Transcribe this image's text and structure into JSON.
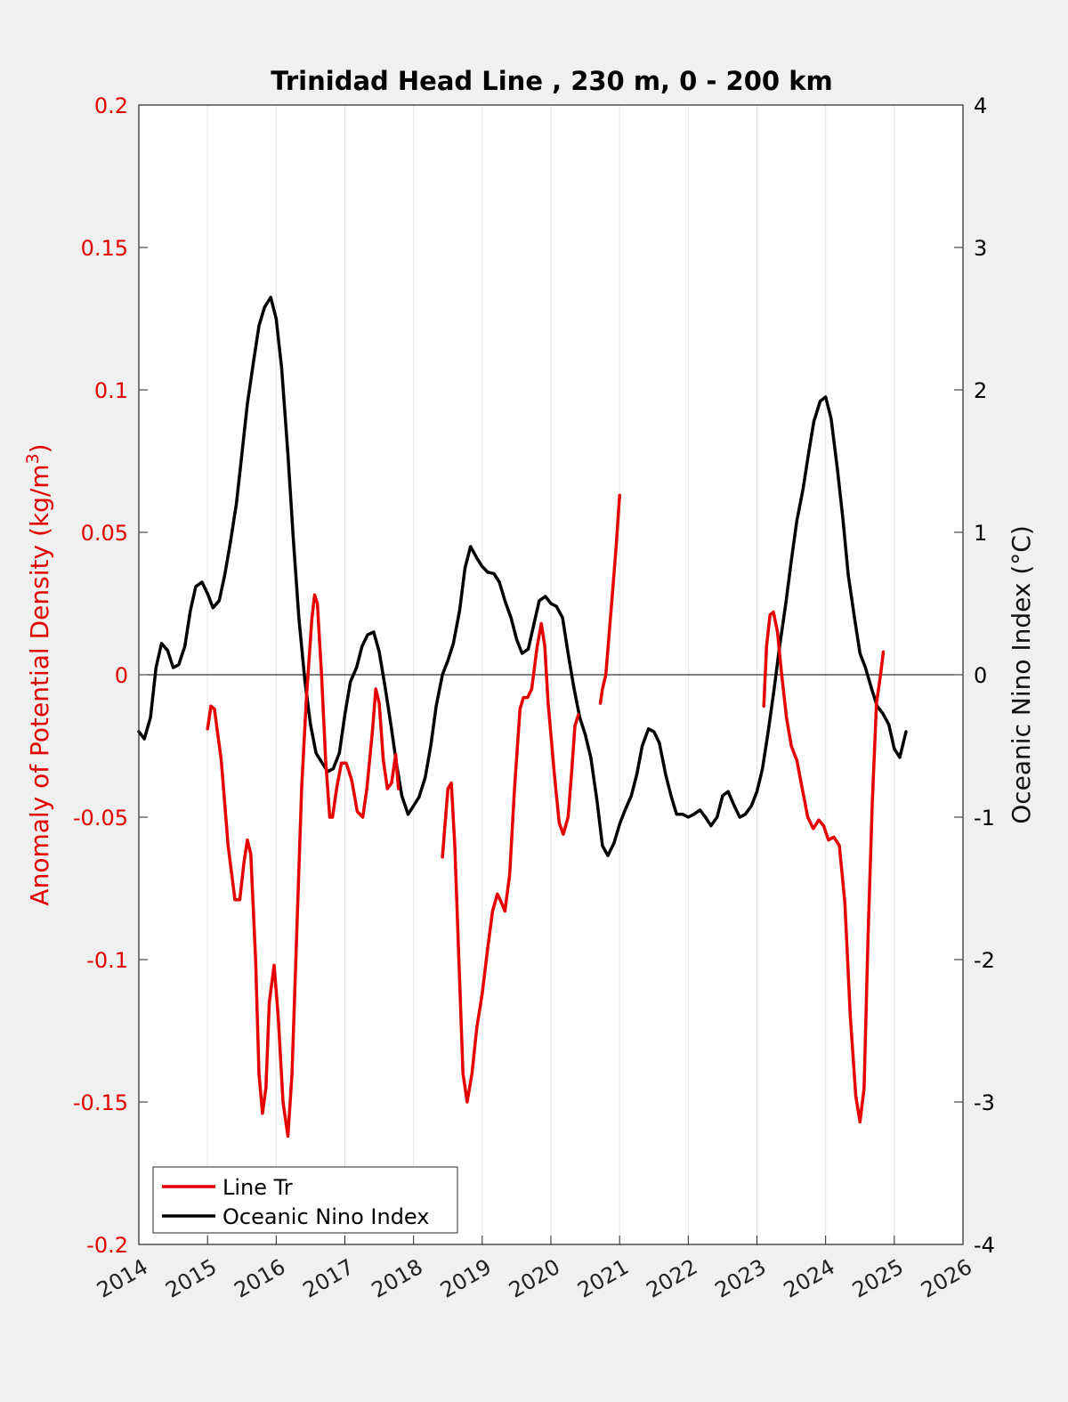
{
  "chart_data": {
    "type": "line",
    "title": "Trinidad Head Line , 230 m, 0 - 200 km",
    "ylabel_left_prefix": "Anomaly of Potential Density (kg/m",
    "ylabel_left_sup": "3",
    "ylabel_left_suffix": ")",
    "ylabel_right": "Oceanic Nino Index (°C)",
    "xlim": [
      2014,
      2026
    ],
    "ylim_left": [
      -0.2,
      0.2
    ],
    "ylim_right": [
      -4,
      4
    ],
    "x_ticks": [
      "2014",
      "2015",
      "2016",
      "2017",
      "2018",
      "2019",
      "2020",
      "2021",
      "2022",
      "2023",
      "2024",
      "2025",
      "2026"
    ],
    "y_left_ticks": [
      "-0.2",
      "-0.15",
      "-0.1",
      "-0.05",
      "0",
      "0.05",
      "0.1",
      "0.15",
      "0.2"
    ],
    "y_right_ticks": [
      "-4",
      "-3",
      "-2",
      "-1",
      "0",
      "1",
      "2",
      "3",
      "4"
    ],
    "grid": "vertical",
    "legend_position": "bottom-left",
    "colors": {
      "line_tr": "#e60000",
      "oni": "#000000"
    },
    "series": [
      {
        "name": "Line Tr",
        "axis": "left",
        "segments": [
          [
            [
              2015.0,
              -0.019
            ],
            [
              2015.05,
              -0.011
            ],
            [
              2015.1,
              -0.012
            ],
            [
              2015.2,
              -0.03
            ],
            [
              2015.3,
              -0.06
            ],
            [
              2015.4,
              -0.079
            ],
            [
              2015.47,
              -0.079
            ],
            [
              2015.53,
              -0.066
            ],
            [
              2015.58,
              -0.058
            ],
            [
              2015.63,
              -0.063
            ],
            [
              2015.7,
              -0.1
            ],
            [
              2015.75,
              -0.14
            ],
            [
              2015.8,
              -0.154
            ],
            [
              2015.85,
              -0.145
            ],
            [
              2015.9,
              -0.115
            ],
            [
              2015.97,
              -0.102
            ],
            [
              2016.03,
              -0.12
            ],
            [
              2016.1,
              -0.15
            ],
            [
              2016.17,
              -0.162
            ],
            [
              2016.23,
              -0.14
            ],
            [
              2016.3,
              -0.09
            ],
            [
              2016.37,
              -0.04
            ],
            [
              2016.44,
              -0.008
            ],
            [
              2016.52,
              0.02
            ],
            [
              2016.56,
              0.028
            ],
            [
              2016.6,
              0.025
            ],
            [
              2016.66,
              0.0
            ],
            [
              2016.72,
              -0.03
            ],
            [
              2016.78,
              -0.05
            ],
            [
              2016.82,
              -0.05
            ],
            [
              2016.88,
              -0.04
            ],
            [
              2016.95,
              -0.031
            ],
            [
              2017.02,
              -0.031
            ],
            [
              2017.1,
              -0.037
            ],
            [
              2017.18,
              -0.048
            ],
            [
              2017.26,
              -0.05
            ],
            [
              2017.32,
              -0.04
            ],
            [
              2017.4,
              -0.02
            ],
            [
              2017.45,
              -0.005
            ],
            [
              2017.5,
              -0.01
            ],
            [
              2017.56,
              -0.03
            ],
            [
              2017.62,
              -0.04
            ],
            [
              2017.68,
              -0.038
            ],
            [
              2017.74,
              -0.028
            ],
            [
              2017.78,
              -0.04
            ]
          ],
          [
            [
              2018.42,
              -0.064
            ],
            [
              2018.46,
              -0.052
            ],
            [
              2018.5,
              -0.04
            ],
            [
              2018.55,
              -0.038
            ],
            [
              2018.6,
              -0.06
            ],
            [
              2018.66,
              -0.1
            ],
            [
              2018.72,
              -0.14
            ],
            [
              2018.78,
              -0.15
            ],
            [
              2018.85,
              -0.14
            ],
            [
              2018.92,
              -0.124
            ],
            [
              2019.0,
              -0.112
            ],
            [
              2019.07,
              -0.098
            ],
            [
              2019.15,
              -0.083
            ],
            [
              2019.22,
              -0.077
            ],
            [
              2019.28,
              -0.08
            ],
            [
              2019.33,
              -0.083
            ],
            [
              2019.4,
              -0.07
            ],
            [
              2019.47,
              -0.04
            ],
            [
              2019.55,
              -0.012
            ],
            [
              2019.6,
              -0.008
            ],
            [
              2019.66,
              -0.008
            ],
            [
              2019.72,
              -0.005
            ],
            [
              2019.8,
              0.01
            ],
            [
              2019.86,
              0.018
            ],
            [
              2019.91,
              0.01
            ],
            [
              2019.96,
              -0.01
            ],
            [
              2020.05,
              -0.035
            ],
            [
              2020.12,
              -0.052
            ],
            [
              2020.18,
              -0.056
            ],
            [
              2020.25,
              -0.05
            ],
            [
              2020.3,
              -0.035
            ],
            [
              2020.35,
              -0.018
            ],
            [
              2020.4,
              -0.014
            ]
          ],
          [
            [
              2020.72,
              -0.01
            ],
            [
              2020.75,
              -0.005
            ],
            [
              2020.8,
              0.0
            ],
            [
              2020.85,
              0.015
            ],
            [
              2020.9,
              0.03
            ],
            [
              2020.95,
              0.045
            ],
            [
              2021.0,
              0.063
            ]
          ],
          [
            [
              2023.1,
              -0.011
            ],
            [
              2023.14,
              0.01
            ],
            [
              2023.19,
              0.021
            ],
            [
              2023.24,
              0.022
            ],
            [
              2023.3,
              0.015
            ],
            [
              2023.36,
              0.0
            ],
            [
              2023.43,
              -0.015
            ],
            [
              2023.5,
              -0.025
            ],
            [
              2023.58,
              -0.03
            ],
            [
              2023.66,
              -0.04
            ],
            [
              2023.74,
              -0.05
            ],
            [
              2023.82,
              -0.054
            ],
            [
              2023.9,
              -0.051
            ],
            [
              2023.97,
              -0.053
            ],
            [
              2024.04,
              -0.058
            ],
            [
              2024.12,
              -0.057
            ],
            [
              2024.2,
              -0.06
            ],
            [
              2024.28,
              -0.08
            ],
            [
              2024.36,
              -0.12
            ],
            [
              2024.44,
              -0.148
            ],
            [
              2024.5,
              -0.157
            ],
            [
              2024.56,
              -0.145
            ],
            [
              2024.62,
              -0.09
            ],
            [
              2024.68,
              -0.045
            ],
            [
              2024.74,
              -0.01
            ],
            [
              2024.8,
              0.0
            ],
            [
              2024.84,
              0.008
            ]
          ]
        ]
      },
      {
        "name": "Oceanic Nino Index",
        "axis": "right",
        "segments": [
          [
            [
              2014.0,
              -0.4
            ],
            [
              2014.08,
              -0.45
            ],
            [
              2014.17,
              -0.3
            ],
            [
              2014.25,
              0.05
            ],
            [
              2014.33,
              0.22
            ],
            [
              2014.42,
              0.17
            ],
            [
              2014.5,
              0.05
            ],
            [
              2014.58,
              0.07
            ],
            [
              2014.67,
              0.2
            ],
            [
              2014.75,
              0.45
            ],
            [
              2014.83,
              0.62
            ],
            [
              2014.92,
              0.65
            ],
            [
              2015.0,
              0.57
            ],
            [
              2015.08,
              0.47
            ],
            [
              2015.17,
              0.52
            ],
            [
              2015.25,
              0.7
            ],
            [
              2015.33,
              0.92
            ],
            [
              2015.42,
              1.2
            ],
            [
              2015.5,
              1.55
            ],
            [
              2015.58,
              1.9
            ],
            [
              2015.67,
              2.2
            ],
            [
              2015.75,
              2.45
            ],
            [
              2015.83,
              2.58
            ],
            [
              2015.92,
              2.65
            ],
            [
              2016.0,
              2.5
            ],
            [
              2016.08,
              2.15
            ],
            [
              2016.17,
              1.55
            ],
            [
              2016.25,
              0.95
            ],
            [
              2016.33,
              0.4
            ],
            [
              2016.42,
              -0.05
            ],
            [
              2016.5,
              -0.35
            ],
            [
              2016.58,
              -0.55
            ],
            [
              2016.67,
              -0.62
            ],
            [
              2016.75,
              -0.68
            ],
            [
              2016.83,
              -0.66
            ],
            [
              2016.92,
              -0.55
            ],
            [
              2017.0,
              -0.28
            ],
            [
              2017.08,
              -0.05
            ],
            [
              2017.17,
              0.05
            ],
            [
              2017.25,
              0.2
            ],
            [
              2017.33,
              0.28
            ],
            [
              2017.42,
              0.3
            ],
            [
              2017.5,
              0.16
            ],
            [
              2017.58,
              -0.07
            ],
            [
              2017.67,
              -0.35
            ],
            [
              2017.75,
              -0.62
            ],
            [
              2017.83,
              -0.85
            ],
            [
              2017.92,
              -0.98
            ],
            [
              2018.0,
              -0.92
            ],
            [
              2018.08,
              -0.86
            ],
            [
              2018.17,
              -0.72
            ],
            [
              2018.25,
              -0.5
            ],
            [
              2018.33,
              -0.22
            ],
            [
              2018.42,
              0.0
            ],
            [
              2018.5,
              0.1
            ],
            [
              2018.58,
              0.22
            ],
            [
              2018.67,
              0.45
            ],
            [
              2018.75,
              0.75
            ],
            [
              2018.83,
              0.9
            ],
            [
              2018.92,
              0.82
            ],
            [
              2019.0,
              0.76
            ],
            [
              2019.08,
              0.72
            ],
            [
              2019.17,
              0.71
            ],
            [
              2019.25,
              0.65
            ],
            [
              2019.33,
              0.52
            ],
            [
              2019.42,
              0.4
            ],
            [
              2019.5,
              0.25
            ],
            [
              2019.58,
              0.15
            ],
            [
              2019.67,
              0.18
            ],
            [
              2019.75,
              0.35
            ],
            [
              2019.83,
              0.52
            ],
            [
              2019.92,
              0.55
            ],
            [
              2020.0,
              0.5
            ],
            [
              2020.08,
              0.48
            ],
            [
              2020.17,
              0.4
            ],
            [
              2020.25,
              0.15
            ],
            [
              2020.33,
              -0.08
            ],
            [
              2020.42,
              -0.3
            ],
            [
              2020.5,
              -0.42
            ],
            [
              2020.58,
              -0.58
            ],
            [
              2020.67,
              -0.88
            ],
            [
              2020.75,
              -1.2
            ],
            [
              2020.83,
              -1.27
            ],
            [
              2020.92,
              -1.18
            ],
            [
              2021.0,
              -1.05
            ],
            [
              2021.08,
              -0.95
            ],
            [
              2021.17,
              -0.85
            ],
            [
              2021.25,
              -0.7
            ],
            [
              2021.33,
              -0.5
            ],
            [
              2021.42,
              -0.38
            ],
            [
              2021.5,
              -0.4
            ],
            [
              2021.58,
              -0.48
            ],
            [
              2021.67,
              -0.7
            ],
            [
              2021.75,
              -0.85
            ],
            [
              2021.83,
              -0.98
            ],
            [
              2021.92,
              -0.98
            ],
            [
              2022.0,
              -1.0
            ],
            [
              2022.08,
              -0.98
            ],
            [
              2022.17,
              -0.95
            ],
            [
              2022.25,
              -1.0
            ],
            [
              2022.33,
              -1.06
            ],
            [
              2022.42,
              -1.0
            ],
            [
              2022.5,
              -0.85
            ],
            [
              2022.58,
              -0.82
            ],
            [
              2022.67,
              -0.92
            ],
            [
              2022.75,
              -1.0
            ],
            [
              2022.83,
              -0.98
            ],
            [
              2022.92,
              -0.92
            ],
            [
              2023.0,
              -0.82
            ],
            [
              2023.08,
              -0.66
            ],
            [
              2023.17,
              -0.38
            ],
            [
              2023.25,
              -0.1
            ],
            [
              2023.33,
              0.2
            ],
            [
              2023.42,
              0.5
            ],
            [
              2023.5,
              0.8
            ],
            [
              2023.58,
              1.08
            ],
            [
              2023.67,
              1.3
            ],
            [
              2023.75,
              1.55
            ],
            [
              2023.83,
              1.78
            ],
            [
              2023.92,
              1.92
            ],
            [
              2024.0,
              1.95
            ],
            [
              2024.08,
              1.8
            ],
            [
              2024.17,
              1.45
            ],
            [
              2024.25,
              1.1
            ],
            [
              2024.33,
              0.7
            ],
            [
              2024.42,
              0.4
            ],
            [
              2024.5,
              0.15
            ],
            [
              2024.58,
              0.05
            ],
            [
              2024.67,
              -0.1
            ],
            [
              2024.75,
              -0.22
            ],
            [
              2024.83,
              -0.27
            ],
            [
              2024.92,
              -0.35
            ],
            [
              2025.0,
              -0.52
            ],
            [
              2025.08,
              -0.58
            ],
            [
              2025.17,
              -0.4
            ]
          ]
        ]
      }
    ]
  }
}
